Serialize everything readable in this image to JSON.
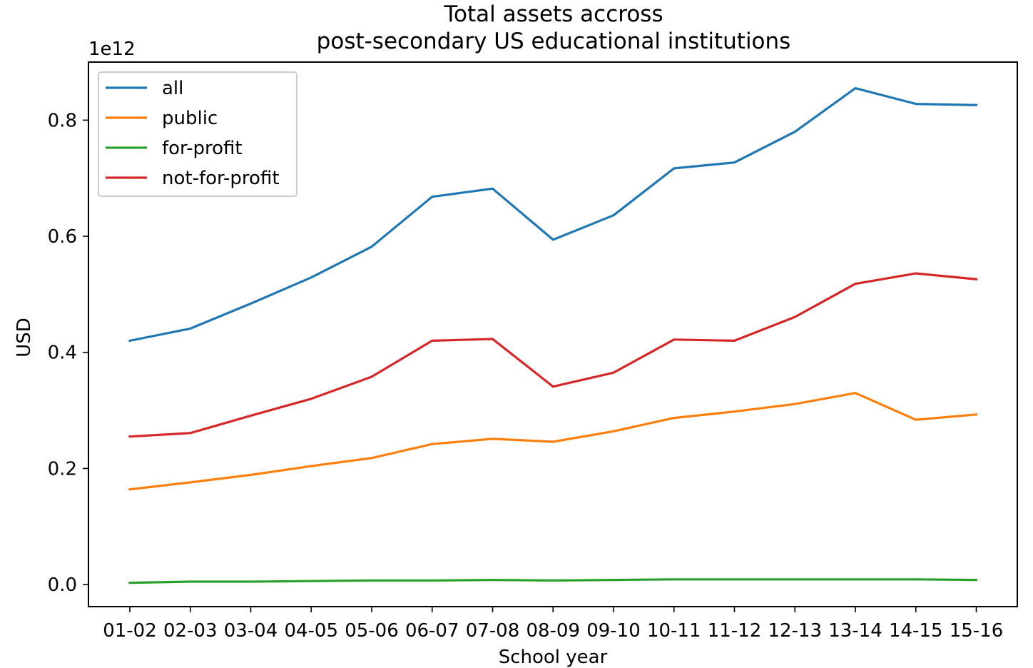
{
  "chart_data": {
    "type": "line",
    "title_line1": "Total assets accross",
    "title_line2": "post-secondary US educational institutions",
    "xlabel": "School year",
    "ylabel": "USD",
    "y_offset_label": "1e12",
    "categories": [
      "01-02",
      "02-03",
      "03-04",
      "04-05",
      "05-06",
      "06-07",
      "07-08",
      "08-09",
      "09-10",
      "10-11",
      "11-12",
      "12-13",
      "13-14",
      "14-15",
      "15-16"
    ],
    "y_ticks": [
      "0.0",
      "0.2",
      "0.4",
      "0.6",
      "0.8"
    ],
    "y_tick_values": [
      0.0,
      0.2,
      0.4,
      0.6,
      0.8
    ],
    "ylim": [
      -0.038,
      0.9
    ],
    "legend_position": "top-left",
    "grid": false,
    "series": [
      {
        "name": "all",
        "color": "#1f77b4",
        "values": [
          0.42,
          0.441,
          0.484,
          0.529,
          0.582,
          0.668,
          0.682,
          0.594,
          0.636,
          0.717,
          0.727,
          0.78,
          0.855,
          0.828,
          0.826
        ]
      },
      {
        "name": "public",
        "color": "#ff7f0e",
        "values": [
          0.164,
          0.176,
          0.189,
          0.204,
          0.218,
          0.242,
          0.251,
          0.246,
          0.264,
          0.287,
          0.298,
          0.311,
          0.33,
          0.284,
          0.293
        ]
      },
      {
        "name": "for-profit",
        "color": "#2ca02c",
        "values": [
          0.003,
          0.005,
          0.005,
          0.006,
          0.007,
          0.007,
          0.008,
          0.007,
          0.008,
          0.009,
          0.009,
          0.009,
          0.009,
          0.009,
          0.008
        ]
      },
      {
        "name": "not-for-profit",
        "color": "#d62728",
        "values": [
          0.255,
          0.261,
          0.291,
          0.32,
          0.358,
          0.42,
          0.423,
          0.341,
          0.365,
          0.422,
          0.42,
          0.461,
          0.518,
          0.536,
          0.526
        ]
      }
    ]
  }
}
